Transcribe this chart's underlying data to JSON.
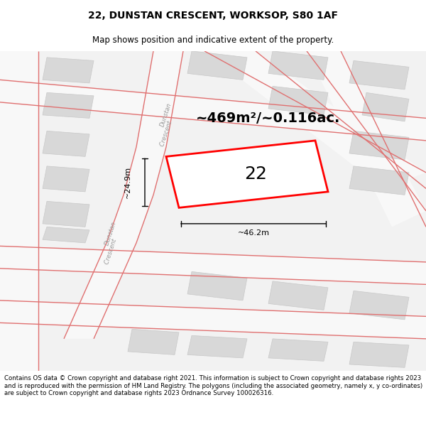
{
  "title": "22, DUNSTAN CRESCENT, WORKSOP, S80 1AF",
  "subtitle": "Map shows position and indicative extent of the property.",
  "area_text": "~469m²/~0.116ac.",
  "label_22": "22",
  "dim_width": "~46.2m",
  "dim_height": "~24.9m",
  "street_label_top": "Dunstan Crescent",
  "street_label_bottom": "Dunstan Crescent",
  "footer": "Contains OS data © Crown copyright and database right 2021. This information is subject to Crown copyright and database rights 2023 and is reproduced with the permission of HM Land Registry. The polygons (including the associated geometry, namely x, y co-ordinates) are subject to Crown copyright and database rights 2023 Ordnance Survey 100026316.",
  "bg_color": "#ffffff",
  "map_bg": "#f0f0f0",
  "plot_color": "#ff0000",
  "plot_fill": "#ffffff",
  "road_fill": "#f8f8f8",
  "road_line": "#e07070",
  "building_fill": "#d8d8d8",
  "building_edge": "#c8c8c8",
  "title_fontsize": 10,
  "subtitle_fontsize": 8.5,
  "area_fontsize": 14,
  "label_fontsize": 18,
  "dim_fontsize": 8,
  "street_fontsize": 6,
  "footer_fontsize": 6.2
}
